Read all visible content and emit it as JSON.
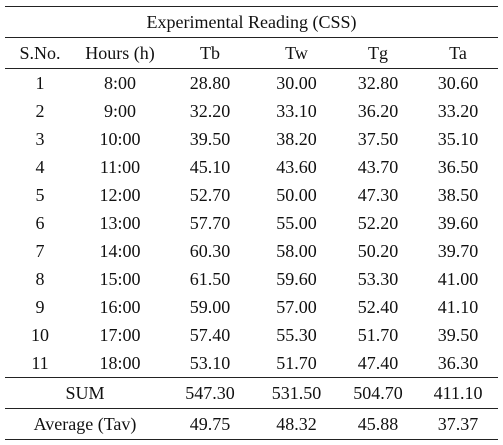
{
  "table": {
    "title": "Experimental Reading (CSS)",
    "header": [
      "S.No.",
      "Hours (h)",
      "Tb",
      "Tw",
      "Tg",
      "Ta"
    ],
    "rows": [
      [
        "1",
        "8:00",
        "28.80",
        "30.00",
        "32.80",
        "30.60"
      ],
      [
        "2",
        "9:00",
        "32.20",
        "33.10",
        "36.20",
        "33.20"
      ],
      [
        "3",
        "10:00",
        "39.50",
        "38.20",
        "37.50",
        "35.10"
      ],
      [
        "4",
        "11:00",
        "45.10",
        "43.60",
        "43.70",
        "36.50"
      ],
      [
        "5",
        "12:00",
        "52.70",
        "50.00",
        "47.30",
        "38.50"
      ],
      [
        "6",
        "13:00",
        "57.70",
        "55.00",
        "52.20",
        "39.60"
      ],
      [
        "7",
        "14:00",
        "60.30",
        "58.00",
        "50.20",
        "39.70"
      ],
      [
        "8",
        "15:00",
        "61.50",
        "59.60",
        "53.30",
        "41.00"
      ],
      [
        "9",
        "16:00",
        "59.00",
        "57.00",
        "52.40",
        "41.10"
      ],
      [
        "10",
        "17:00",
        "57.40",
        "55.30",
        "51.70",
        "39.50"
      ],
      [
        "11",
        "18:00",
        "53.10",
        "51.70",
        "47.40",
        "36.30"
      ]
    ],
    "summary": [
      [
        "SUM",
        "547.30",
        "531.50",
        "504.70",
        "411.10"
      ],
      [
        "Average (Tav)",
        "49.75",
        "48.32",
        "45.88",
        "37.37"
      ]
    ]
  }
}
